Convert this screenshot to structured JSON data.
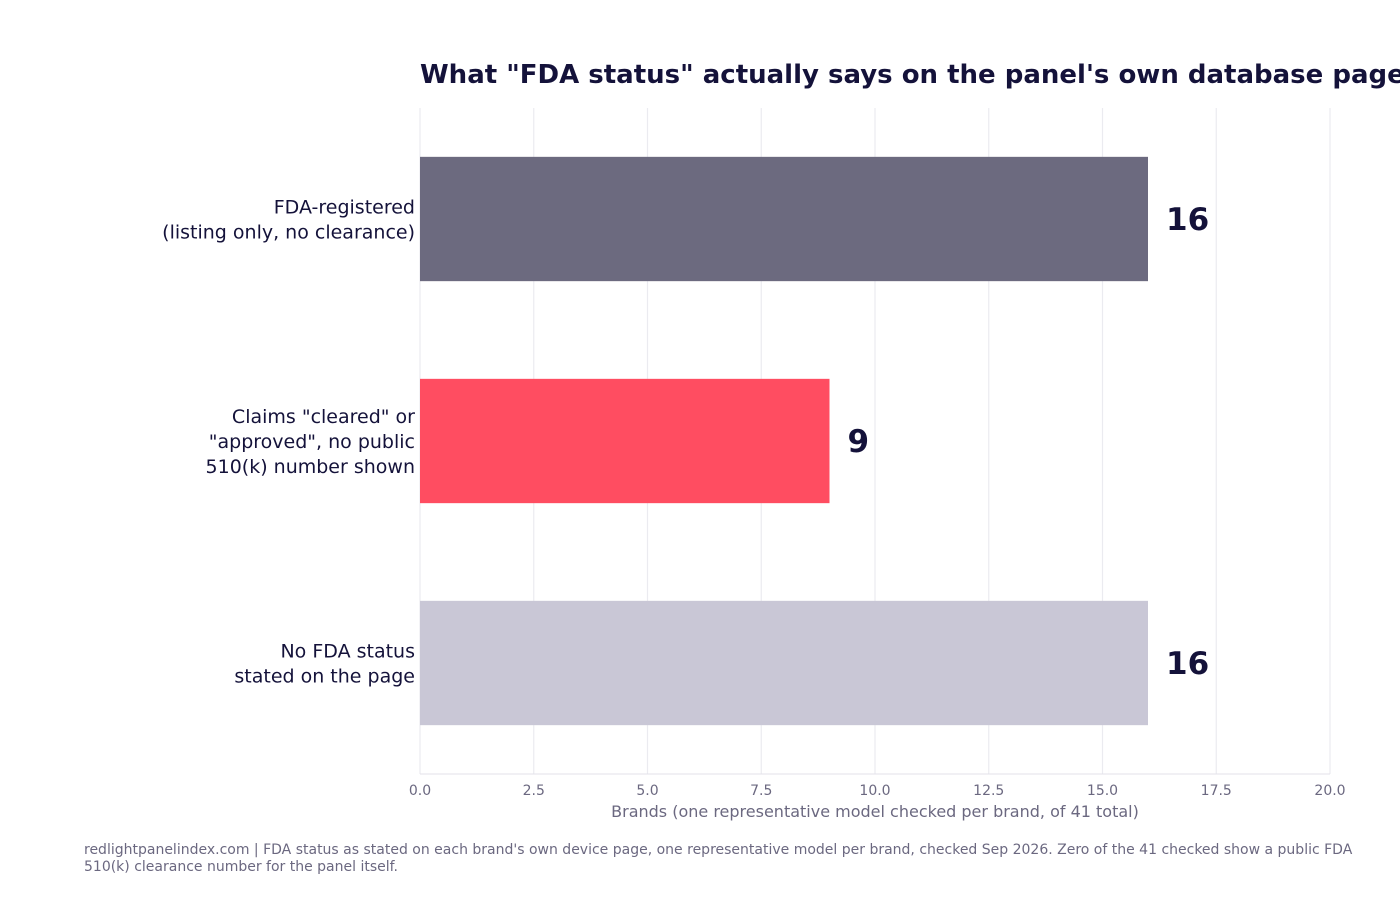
{
  "chart_data": {
    "type": "bar",
    "orientation": "horizontal",
    "title": "What \"FDA status\" actually says on the panel's own database page",
    "xlabel": "Brands (one representative model checked per brand, of 41 total)",
    "ylabel": "",
    "xlim": [
      0,
      20
    ],
    "xticks": [
      "0.0",
      "2.5",
      "5.0",
      "7.5",
      "10.0",
      "12.5",
      "15.0",
      "17.5",
      "20.0"
    ],
    "grid": "vertical",
    "categories": [
      [
        "FDA-registered",
        "(listing only, no clearance)"
      ],
      [
        "Claims \"cleared\" or",
        "\"approved\", no public",
        "510(k) number shown"
      ],
      [
        "No FDA status",
        "stated on the page"
      ]
    ],
    "values": [
      16,
      9,
      16
    ],
    "value_labels": [
      "16",
      "9",
      "16"
    ],
    "colors": [
      "#6c6a7f",
      "#ff4d61",
      "#c9c7d6"
    ]
  },
  "footer": {
    "note": "redlightpanelindex.com | FDA status as stated on each brand's own device page, one representative model per brand, checked Sep 2026. Zero of the 41 checked show a public FDA 510(k) clearance number for the panel itself."
  }
}
